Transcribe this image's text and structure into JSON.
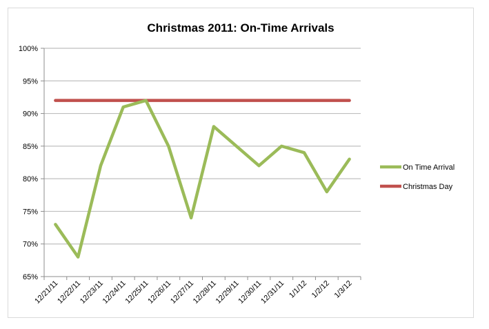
{
  "chart_data": {
    "type": "line",
    "title": "Christmas 2011: On-Time Arrivals",
    "xlabel": "",
    "ylabel": "",
    "categories": [
      "12/21/11",
      "12/22/11",
      "12/23/11",
      "12/24/11",
      "12/25/11",
      "12/26/11",
      "12/27/11",
      "12/28/11",
      "12/29/11",
      "12/30/11",
      "12/31/11",
      "1/1/12",
      "1/2/12",
      "1/3/12"
    ],
    "ylim": [
      65,
      100
    ],
    "yticks": [
      65,
      70,
      75,
      80,
      85,
      90,
      95,
      100
    ],
    "ytick_labels": [
      "65%",
      "70%",
      "75%",
      "80%",
      "85%",
      "90%",
      "95%",
      "100%"
    ],
    "grid": true,
    "legend_position": "right",
    "series": [
      {
        "name": "On Time Arrival",
        "color": "#9bbb59",
        "values": [
          73,
          68,
          82,
          91,
          92,
          85,
          74,
          88,
          85,
          82,
          85,
          84,
          78,
          83
        ]
      },
      {
        "name": "Christmas Day",
        "color": "#c0504d",
        "values": [
          92,
          92,
          92,
          92,
          92,
          92,
          92,
          92,
          92,
          92,
          92,
          92,
          92,
          92
        ]
      }
    ]
  }
}
